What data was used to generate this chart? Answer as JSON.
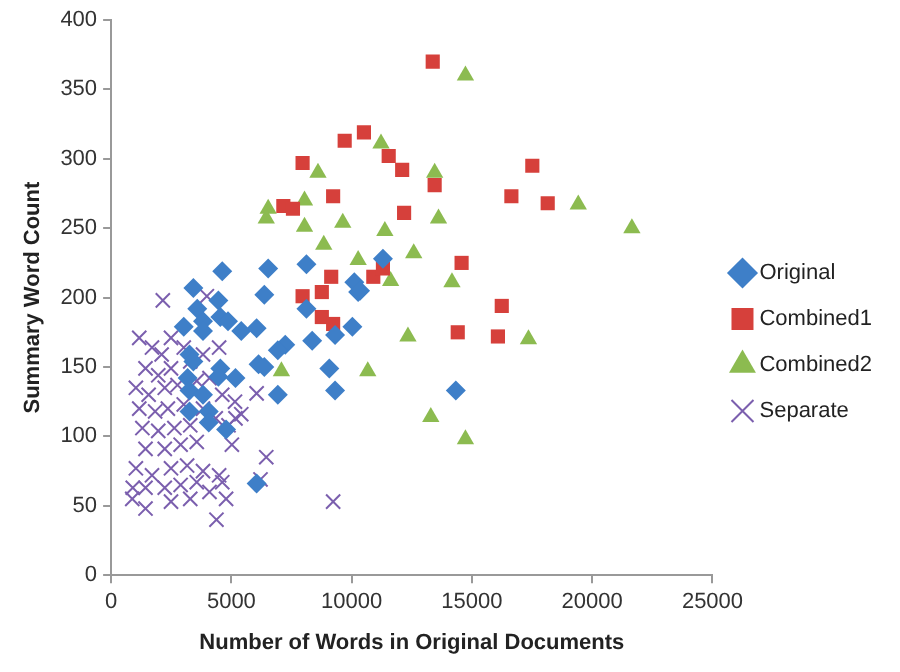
{
  "chart_data": {
    "type": "scatter",
    "xlabel": "Number of Words in Original Documents",
    "ylabel": "Summary Word Count",
    "xlim": [
      0,
      25000
    ],
    "xticks": [
      0,
      5000,
      10000,
      15000,
      20000,
      25000
    ],
    "ylim": [
      0,
      400
    ],
    "yticks": [
      0,
      50,
      100,
      150,
      200,
      250,
      300,
      350,
      400
    ],
    "grid": false,
    "legend": "right",
    "series": [
      {
        "name": "Original",
        "color": "#3e7fc8",
        "marker": "diamond",
        "x": [
          4620,
          6530,
          8120,
          3420,
          6370,
          4460,
          3580,
          3020,
          3820,
          4540,
          4860,
          5410,
          6050,
          3820,
          7240,
          6930,
          8360,
          10270,
          10030,
          6130,
          6370,
          3260,
          3420,
          4540,
          4460,
          5170,
          3180,
          3260,
          3820,
          6930,
          9070,
          9310,
          3260,
          4060,
          4060,
          4780,
          6050,
          10110,
          11300,
          8120,
          9310,
          14330,
          10350
        ],
        "values": [
          219,
          221,
          224,
          207,
          202,
          198,
          192,
          179,
          183,
          186,
          183,
          176,
          178,
          176,
          166,
          162,
          169,
          204,
          179,
          152,
          150,
          159,
          154,
          149,
          143,
          142,
          142,
          133,
          130,
          130,
          149,
          133,
          118,
          118,
          110,
          105,
          66,
          211,
          228,
          192,
          173,
          133,
          205
        ]
      },
      {
        "name": "Combined1",
        "color": "#d6403b",
        "marker": "square",
        "x": [
          13370,
          9710,
          10510,
          7960,
          11540,
          12100,
          13450,
          9230,
          7160,
          7560,
          12180,
          14570,
          9150,
          10900,
          11300,
          8760,
          7960,
          8760,
          9230,
          14410,
          17510,
          16640,
          18150,
          16240,
          16080
        ],
        "values": [
          370,
          313,
          319,
          297,
          302,
          292,
          281,
          273,
          266,
          264,
          261,
          225,
          215,
          215,
          221,
          204,
          201,
          186,
          181,
          175,
          295,
          273,
          268,
          194,
          172
        ]
      },
      {
        "name": "Combined2",
        "color": "#8cbb50",
        "marker": "triangle",
        "x": [
          14730,
          11220,
          8600,
          13450,
          6530,
          6450,
          8040,
          8040,
          9630,
          11380,
          8840,
          13610,
          12580,
          10270,
          11620,
          14170,
          12340,
          10670,
          7080,
          19420,
          21650,
          17350,
          13290,
          14730
        ],
        "values": [
          360,
          311,
          290,
          290,
          264,
          257,
          270,
          251,
          254,
          248,
          238,
          257,
          232,
          227,
          212,
          211,
          172,
          147,
          147,
          267,
          250,
          170,
          114,
          98
        ]
      },
      {
        "name": "Separate",
        "color": "#7b5fae",
        "marker": "cross",
        "x": [
          9230,
          6450,
          6210,
          2150,
          3980,
          6050,
          5170,
          5020,
          4780,
          4380,
          1430,
          880,
          1170,
          1700,
          2100,
          2490,
          3020,
          1430,
          1960,
          2490,
          3290,
          3820,
          4490,
          1030,
          1560,
          2230,
          2760,
          3560,
          4090,
          4620,
          5150,
          1170,
          1830,
          2360,
          3020,
          3820,
          4350,
          4880,
          1300,
          1960,
          2630,
          3290,
          1430,
          2230,
          2890,
          3560,
          1030,
          1700,
          2490,
          3160,
          3820,
          4490,
          1430,
          2230,
          2890,
          3560,
          4090,
          900,
          2490,
          3290,
          4620,
          5410
        ],
        "values": [
          53,
          85,
          69,
          198,
          201,
          131,
          113,
          94,
          55,
          40,
          48,
          55,
          171,
          164,
          159,
          171,
          164,
          149,
          144,
          149,
          154,
          159,
          164,
          135,
          130,
          135,
          137,
          140,
          142,
          130,
          125,
          120,
          118,
          120,
          123,
          120,
          113,
          108,
          106,
          104,
          106,
          108,
          91,
          91,
          94,
          96,
          77,
          72,
          77,
          79,
          75,
          72,
          63,
          63,
          65,
          67,
          60,
          63,
          53,
          55,
          67,
          116
        ]
      }
    ]
  }
}
